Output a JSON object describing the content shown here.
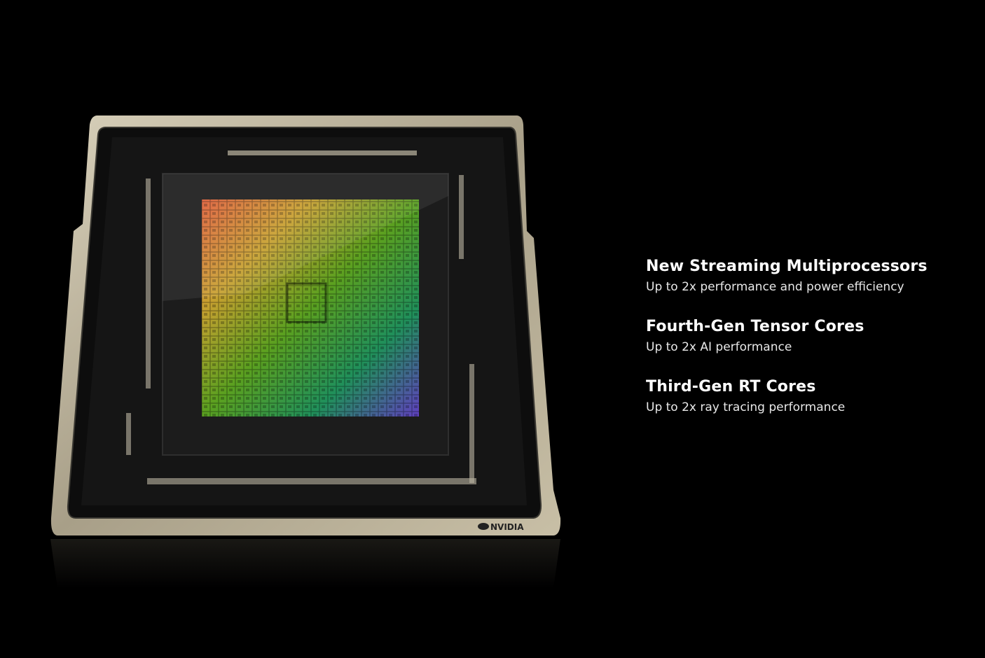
{
  "logo": {
    "text": "NVIDIA"
  },
  "colors": {
    "background": "#000000",
    "frame": "#b5ad96",
    "text": "#ffffff"
  },
  "features": [
    {
      "title": "New Streaming Multiprocessors",
      "subtitle": "Up to 2x performance and power efficiency"
    },
    {
      "title": "Fourth-Gen Tensor Cores",
      "subtitle": "Up to 2x AI performance"
    },
    {
      "title": "Third-Gen RT Cores",
      "subtitle": "Up to 2x ray tracing performance"
    }
  ]
}
